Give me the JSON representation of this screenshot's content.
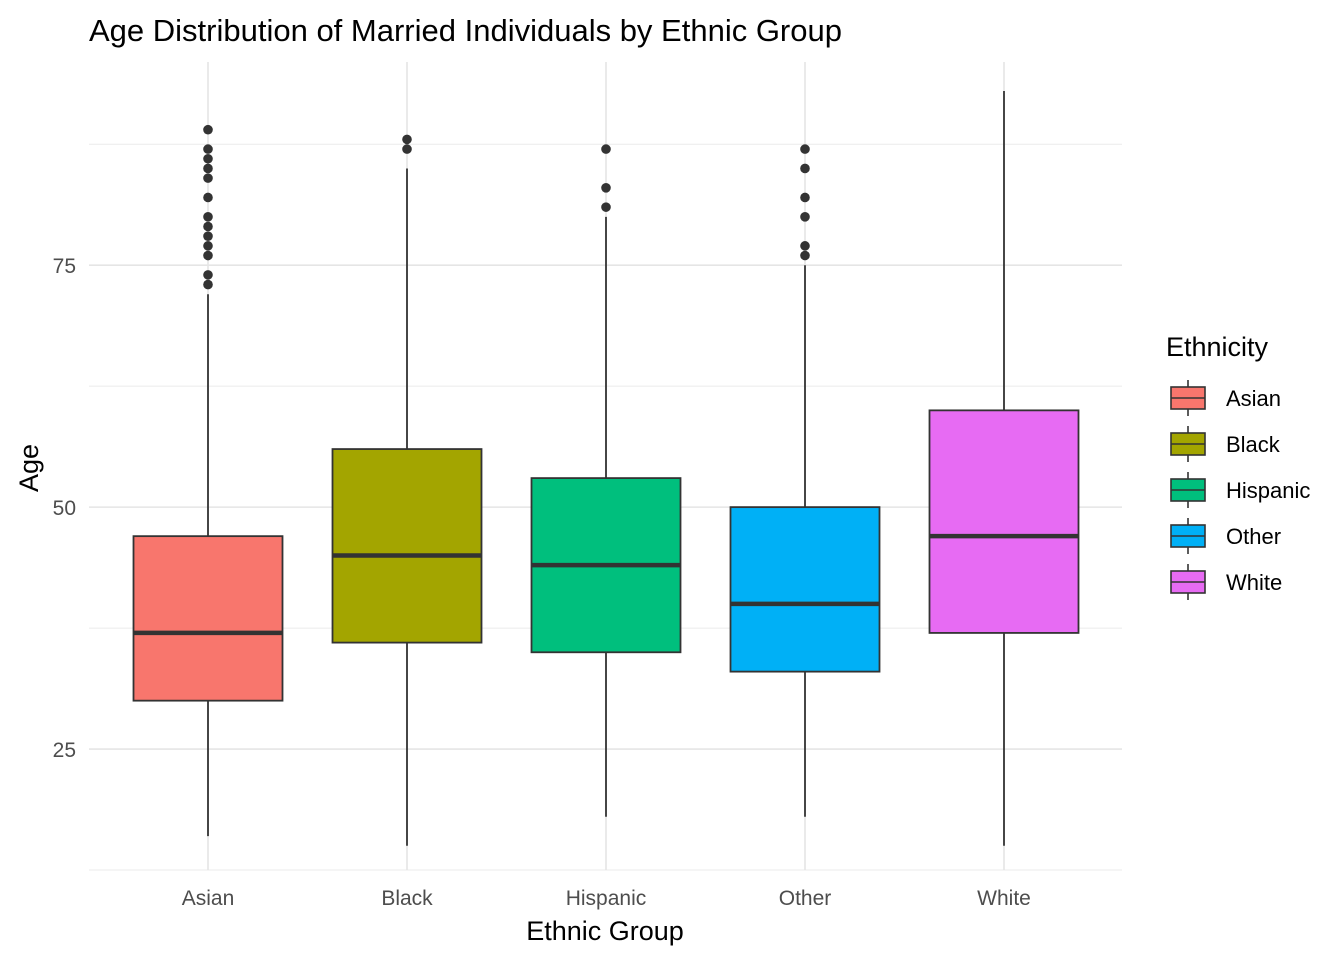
{
  "chart_data": {
    "type": "boxplot",
    "title": "Age Distribution of Married Individuals by Ethnic Group",
    "xlabel": "Ethnic Group",
    "ylabel": "Age",
    "ylim": [
      12.5,
      96
    ],
    "yticks": [
      25,
      50,
      75
    ],
    "grid": true,
    "legend": {
      "title": "Ethnicity",
      "position": "right"
    },
    "categories": [
      "Asian",
      "Black",
      "Hispanic",
      "Other",
      "White"
    ],
    "colors": [
      "#F8766D",
      "#A3A500",
      "#00BF7D",
      "#00B0F6",
      "#E76BF3"
    ],
    "boxes": [
      {
        "name": "Asian",
        "whisker_low": 16,
        "q1": 30,
        "median": 37,
        "q3": 47,
        "whisker_high": 72,
        "outliers": [
          73,
          74,
          76,
          77,
          78,
          79,
          80,
          82,
          84,
          85,
          86,
          87,
          89
        ]
      },
      {
        "name": "Black",
        "whisker_low": 15,
        "q1": 36,
        "median": 45,
        "q3": 56,
        "whisker_high": 85,
        "outliers": [
          87,
          88
        ]
      },
      {
        "name": "Hispanic",
        "whisker_low": 18,
        "q1": 35,
        "median": 44,
        "q3": 53,
        "whisker_high": 80,
        "outliers": [
          81,
          83,
          87
        ]
      },
      {
        "name": "Other",
        "whisker_low": 18,
        "q1": 33,
        "median": 40,
        "q3": 50,
        "whisker_high": 75,
        "outliers": [
          76,
          77,
          80,
          82,
          85,
          87
        ]
      },
      {
        "name": "White",
        "whisker_low": 15,
        "q1": 37,
        "median": 47,
        "q3": 60,
        "whisker_high": 93,
        "outliers": []
      }
    ]
  }
}
